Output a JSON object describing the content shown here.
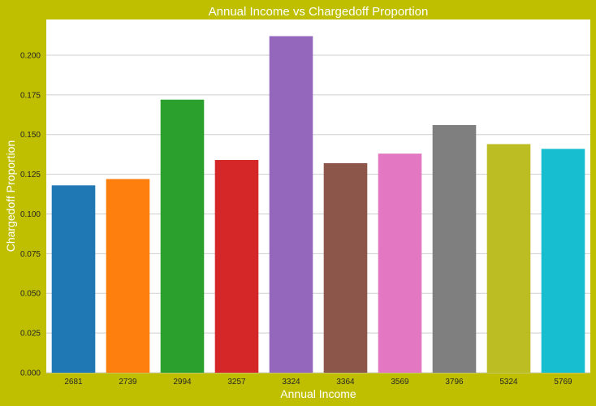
{
  "chart_data": {
    "type": "bar",
    "title": "Annual Income vs Chargedoff Proportion",
    "xlabel": "Annual Income",
    "ylabel": "Chargedoff Proportion",
    "categories": [
      "2681",
      "2739",
      "2994",
      "3257",
      "3324",
      "3364",
      "3569",
      "3796",
      "5324",
      "5769"
    ],
    "values": [
      0.118,
      0.122,
      0.172,
      0.134,
      0.212,
      0.132,
      0.138,
      0.156,
      0.144,
      0.141
    ],
    "colors": [
      "#1f77b4",
      "#ff7f0e",
      "#2ca02c",
      "#d62728",
      "#9467bd",
      "#8c564b",
      "#e377c2",
      "#7f7f7f",
      "#bcbd22",
      "#17becf"
    ],
    "ylim": [
      0,
      0.2225
    ],
    "yticks": [
      "0.000",
      "0.025",
      "0.050",
      "0.075",
      "0.100",
      "0.125",
      "0.150",
      "0.175",
      "0.200"
    ],
    "grid": true,
    "background_color": "#bfbf00",
    "plot_background_color": "#ffffff"
  }
}
